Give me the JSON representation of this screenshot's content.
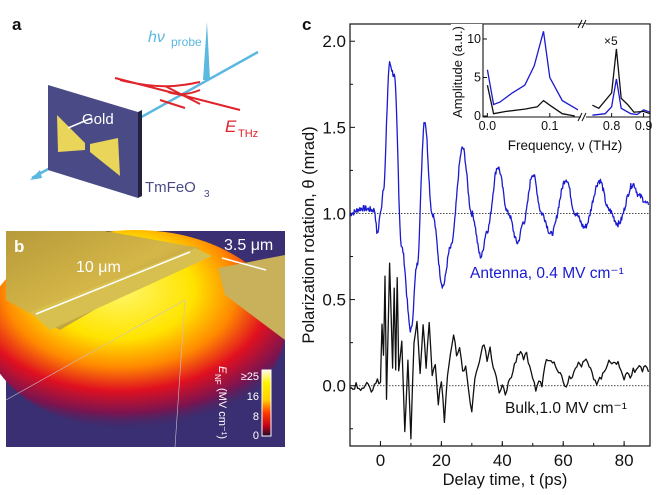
{
  "panel_a": {
    "label": "a",
    "probe_h": "hν",
    "probe_sub": "probe",
    "gold": "Gold",
    "ethz_main": "E",
    "ethz_sub": "THz",
    "crystal_main": "TmFeO",
    "crystal_sub": "3",
    "colors": {
      "probe": "#5bb8e0",
      "thz": "#e0242b",
      "crystal": "#4a4a86",
      "gold": "#e8d55a"
    }
  },
  "panel_b": {
    "label": "b",
    "length": "10 μm",
    "gap": "3.5 μm",
    "colorbar_title": "E",
    "colorbar_sub": "NF",
    "colorbar_unit": "(MV cm⁻¹)",
    "colorbar_ticks": [
      "≥25",
      "16",
      "8",
      "0"
    ]
  },
  "chart_data": [
    {
      "type": "line",
      "panel": "c",
      "label": "c",
      "xlabel": "Delay time, t (ps)",
      "ylabel": "Polarization rotation, θ (mrad)",
      "xlim": [
        -10,
        88.5
      ],
      "ylim": [
        -0.35,
        2.1
      ],
      "xticks": [
        0,
        20,
        40,
        60,
        80
      ],
      "yticks": [
        "0.0",
        "0.5",
        "1.0",
        "1.5",
        "2.0"
      ],
      "baselines": [
        1.0,
        0.0
      ],
      "series": [
        {
          "name": "Antenna, 0.4 MV cm⁻¹",
          "color": "#1a1ad0",
          "offset": 1.0,
          "points": [
            [
              -10,
              1.0
            ],
            [
              -6,
              1.03
            ],
            [
              -2,
              1.02
            ],
            [
              -1,
              0.88
            ],
            [
              0,
              1.0
            ],
            [
              1,
              1.15
            ],
            [
              3,
              1.87
            ],
            [
              4.5,
              1.8
            ],
            [
              7,
              0.8
            ],
            [
              10,
              0.32
            ],
            [
              12,
              0.7
            ],
            [
              14.5,
              1.54
            ],
            [
              17,
              1.0
            ],
            [
              20.5,
              0.58
            ],
            [
              23,
              0.8
            ],
            [
              27,
              1.38
            ],
            [
              30,
              1.0
            ],
            [
              33,
              0.75
            ],
            [
              35,
              0.9
            ],
            [
              38.5,
              1.27
            ],
            [
              42,
              1.0
            ],
            [
              45,
              0.83
            ],
            [
              47,
              0.95
            ],
            [
              50,
              1.23
            ],
            [
              53,
              1.0
            ],
            [
              56,
              0.88
            ],
            [
              61,
              1.2
            ],
            [
              64,
              1.0
            ],
            [
              67,
              0.92
            ],
            [
              72,
              1.19
            ],
            [
              75,
              1.02
            ],
            [
              78,
              0.94
            ],
            [
              83,
              1.17
            ],
            [
              85,
              1.1
            ],
            [
              88,
              1.05
            ]
          ]
        },
        {
          "name": "Bulk,1.0 MV cm⁻¹",
          "color": "#111111",
          "offset": 0.0,
          "points": [
            [
              -10,
              0
            ],
            [
              -9,
              -0.02
            ],
            [
              -8,
              0.01
            ],
            [
              -7,
              -0.03
            ],
            [
              -6,
              0
            ],
            [
              -5,
              -0.01
            ],
            [
              -4,
              0.02
            ],
            [
              -3,
              -0.04
            ],
            [
              -2,
              0.01
            ],
            [
              -1,
              0.03
            ],
            [
              0,
              0.02
            ],
            [
              0.5,
              0.35
            ],
            [
              1,
              0.18
            ],
            [
              1.5,
              0.65
            ],
            [
              2,
              -0.07
            ],
            [
              3,
              0.72
            ],
            [
              4,
              0.1
            ],
            [
              4.5,
              0.58
            ],
            [
              5,
              0.09
            ],
            [
              5.5,
              0.63
            ],
            [
              6,
              0.08
            ],
            [
              7,
              0.25
            ],
            [
              8,
              -0.28
            ],
            [
              9,
              0.15
            ],
            [
              10,
              -0.3
            ],
            [
              11,
              0.25
            ],
            [
              12,
              0.37
            ],
            [
              13,
              0.08
            ],
            [
              14,
              0.36
            ],
            [
              15,
              0.1
            ],
            [
              16,
              0.38
            ],
            [
              17,
              0.05
            ],
            [
              18,
              0.12
            ],
            [
              19,
              -0.1
            ],
            [
              20,
              0.03
            ],
            [
              21,
              -0.2
            ],
            [
              22,
              0.05
            ],
            [
              23,
              0.2
            ],
            [
              24,
              0.3
            ],
            [
              25,
              0.18
            ],
            [
              26,
              0.22
            ],
            [
              27,
              0.08
            ],
            [
              28,
              0.1
            ],
            [
              29,
              -0.05
            ],
            [
              30,
              -0.15
            ],
            [
              31,
              0.05
            ],
            [
              32,
              0.1
            ],
            [
              33,
              0.2
            ],
            [
              34,
              0.24
            ],
            [
              35,
              0.15
            ],
            [
              36,
              0.22
            ],
            [
              37,
              0.1
            ],
            [
              38,
              0.05
            ],
            [
              39,
              -0.05
            ],
            [
              40,
              0.0
            ],
            [
              41,
              -0.05
            ],
            [
              42,
              0.02
            ],
            [
              43,
              0.05
            ],
            [
              44,
              0.12
            ],
            [
              45,
              0.18
            ],
            [
              46,
              0.2
            ],
            [
              47,
              0.16
            ],
            [
              48,
              0.18
            ],
            [
              49,
              0.1
            ],
            [
              50,
              0.03
            ],
            [
              51,
              -0.02
            ],
            [
              52,
              0.03
            ],
            [
              53,
              0.0
            ],
            [
              54,
              0.12
            ],
            [
              55,
              0.16
            ],
            [
              56,
              0.14
            ],
            [
              57,
              0.15
            ],
            [
              58,
              0.1
            ],
            [
              59,
              0.08
            ],
            [
              60,
              0.02
            ],
            [
              61,
              0.0
            ],
            [
              62,
              0.05
            ],
            [
              63,
              0.06
            ],
            [
              64,
              0.1
            ],
            [
              65,
              0.15
            ],
            [
              66,
              0.12
            ],
            [
              67,
              0.15
            ],
            [
              68,
              0.13
            ],
            [
              69,
              0.09
            ],
            [
              70,
              0.05
            ],
            [
              71,
              0.02
            ],
            [
              72,
              0.04
            ],
            [
              73,
              0.06
            ],
            [
              74,
              0.1
            ],
            [
              75,
              0.16
            ],
            [
              76,
              0.13
            ],
            [
              77,
              0.12
            ],
            [
              78,
              0.15
            ],
            [
              79,
              0.08
            ],
            [
              80,
              0.04
            ],
            [
              81,
              0.08
            ],
            [
              82,
              0.05
            ],
            [
              83,
              0.1
            ],
            [
              84,
              0.08
            ],
            [
              85,
              0.12
            ],
            [
              86,
              0.09
            ],
            [
              87,
              0.12
            ],
            [
              88,
              0.08
            ]
          ]
        }
      ]
    },
    {
      "type": "line",
      "panel": "c-inset",
      "xlabel": "Frequency, ν (THz)",
      "ylabel": "Amplitude (a.u.)",
      "annotation": "×5",
      "broken_axis": [
        [
          -0.007,
          0.15
        ],
        [
          0.72,
          0.92
        ]
      ],
      "ylim": [
        0,
        10
      ],
      "xticks": [
        "0.0",
        "0.1",
        "0.8",
        "0.9"
      ],
      "yticks": [
        "0",
        "5",
        "10"
      ],
      "series": [
        {
          "name": "Antenna",
          "color": "#1a1ad0",
          "segments": [
            [
              [
                0,
                6
              ],
              [
                0.01,
                1.5
              ],
              [
                0.02,
                1.8
              ],
              [
                0.04,
                3
              ],
              [
                0.06,
                4
              ],
              [
                0.075,
                6.5
              ],
              [
                0.09,
                11
              ],
              [
                0.1,
                5
              ],
              [
                0.12,
                2
              ],
              [
                0.145,
                0.8
              ]
            ],
            [
              [
                0.74,
                0.1
              ],
              [
                0.78,
                0.3
              ],
              [
                0.8,
                1.2
              ],
              [
                0.815,
                4.8
              ],
              [
                0.83,
                1
              ],
              [
                0.86,
                0.3
              ],
              [
                0.88,
                0.2
              ],
              [
                0.9,
                0.8
              ],
              [
                0.92,
                0.5
              ]
            ]
          ]
        },
        {
          "name": "Bulk",
          "color": "#111111",
          "segments": [
            [
              [
                0,
                4
              ],
              [
                0.01,
                0.3
              ],
              [
                0.03,
                0.6
              ],
              [
                0.06,
                0.9
              ],
              [
                0.08,
                1.2
              ],
              [
                0.09,
                2
              ],
              [
                0.1,
                1.4
              ],
              [
                0.12,
                0.3
              ],
              [
                0.14,
                0
              ]
            ],
            [
              [
                0.74,
                1.4
              ],
              [
                0.76,
                1
              ],
              [
                0.8,
                3
              ],
              [
                0.815,
                8.7
              ],
              [
                0.83,
                2.3
              ],
              [
                0.85,
                1.5
              ],
              [
                0.87,
                0.5
              ],
              [
                0.9,
                0.6
              ],
              [
                0.92,
                0.3
              ]
            ]
          ]
        }
      ]
    }
  ]
}
